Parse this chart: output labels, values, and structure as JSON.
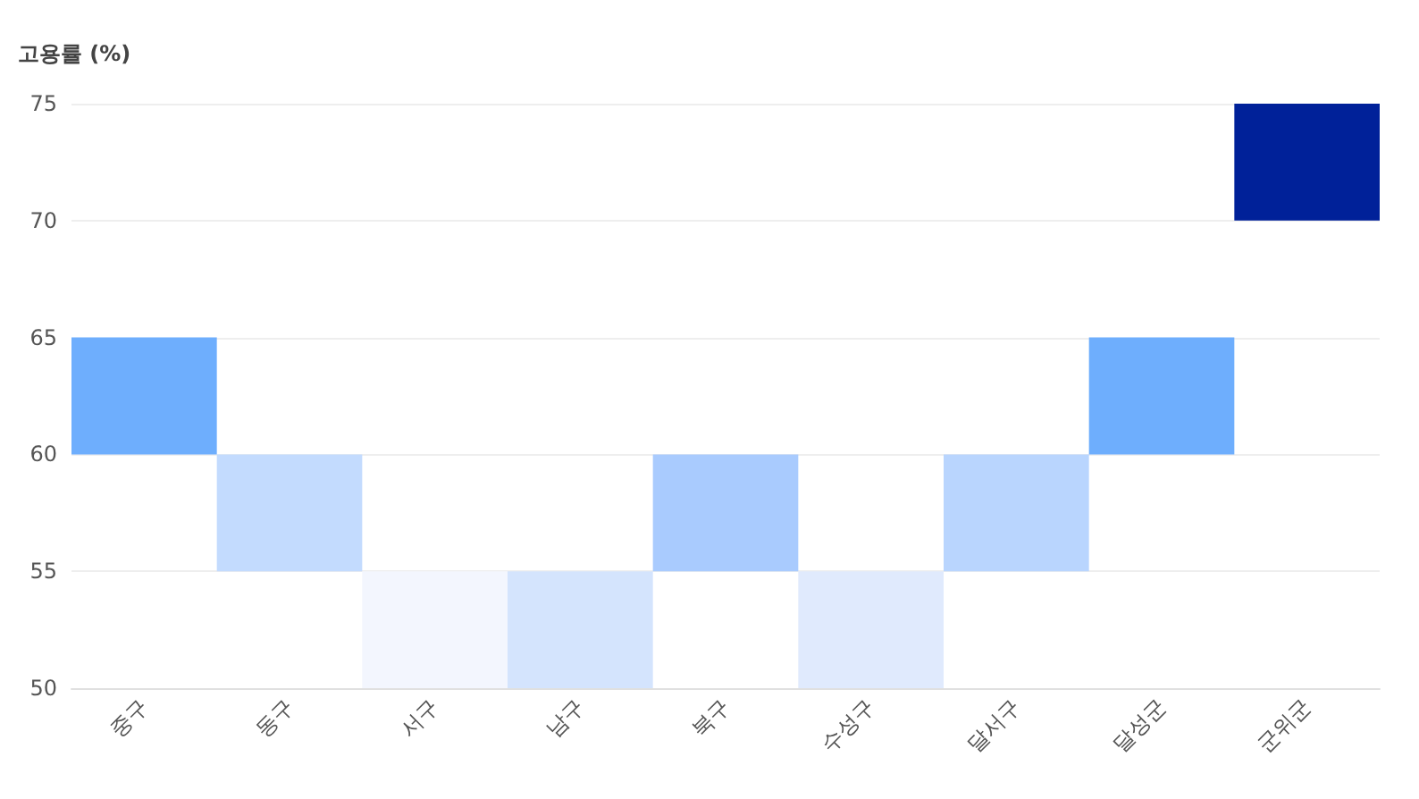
{
  "chart_data": {
    "type": "bar",
    "ylabel": "고용률 (%)",
    "categories": [
      "중구",
      "동구",
      "서구",
      "남구",
      "북구",
      "수성구",
      "달서구",
      "달성군",
      "군위군"
    ],
    "base": [
      60,
      55,
      50,
      50,
      55,
      50,
      55,
      60,
      70
    ],
    "values": [
      5,
      5,
      5,
      5,
      5,
      5,
      5,
      5,
      5
    ],
    "colors": [
      "#6eaefd",
      "#c3dbfe",
      "#f3f6fe",
      "#d4e4fd",
      "#a9cbfe",
      "#e0eafd",
      "#b9d5fe",
      "#6eaefd",
      "#002199"
    ],
    "ylim": [
      50,
      75
    ],
    "yticks": [
      50,
      55,
      60,
      65,
      70,
      75
    ],
    "grid": "y"
  }
}
